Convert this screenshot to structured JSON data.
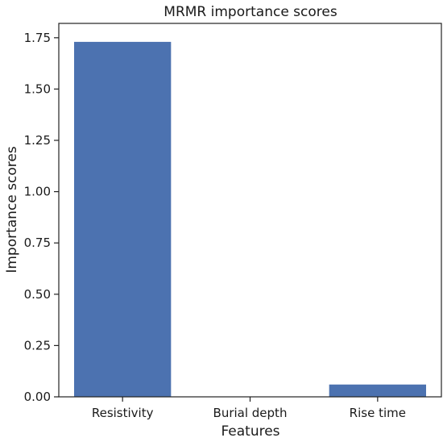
{
  "chart_data": {
    "type": "bar",
    "title": "MRMR importance scores",
    "xlabel": "Features",
    "ylabel": "Importance scores",
    "categories": [
      "Resistivity",
      "Burial depth",
      "Rise time"
    ],
    "values": [
      1.73,
      0.0,
      0.06
    ],
    "ylim": [
      0,
      1.82
    ],
    "yticks": [
      "0.00",
      "0.25",
      "0.50",
      "0.75",
      "1.00",
      "1.25",
      "1.50",
      "1.75"
    ],
    "grid": false,
    "bar_color": "#4c72b0"
  }
}
